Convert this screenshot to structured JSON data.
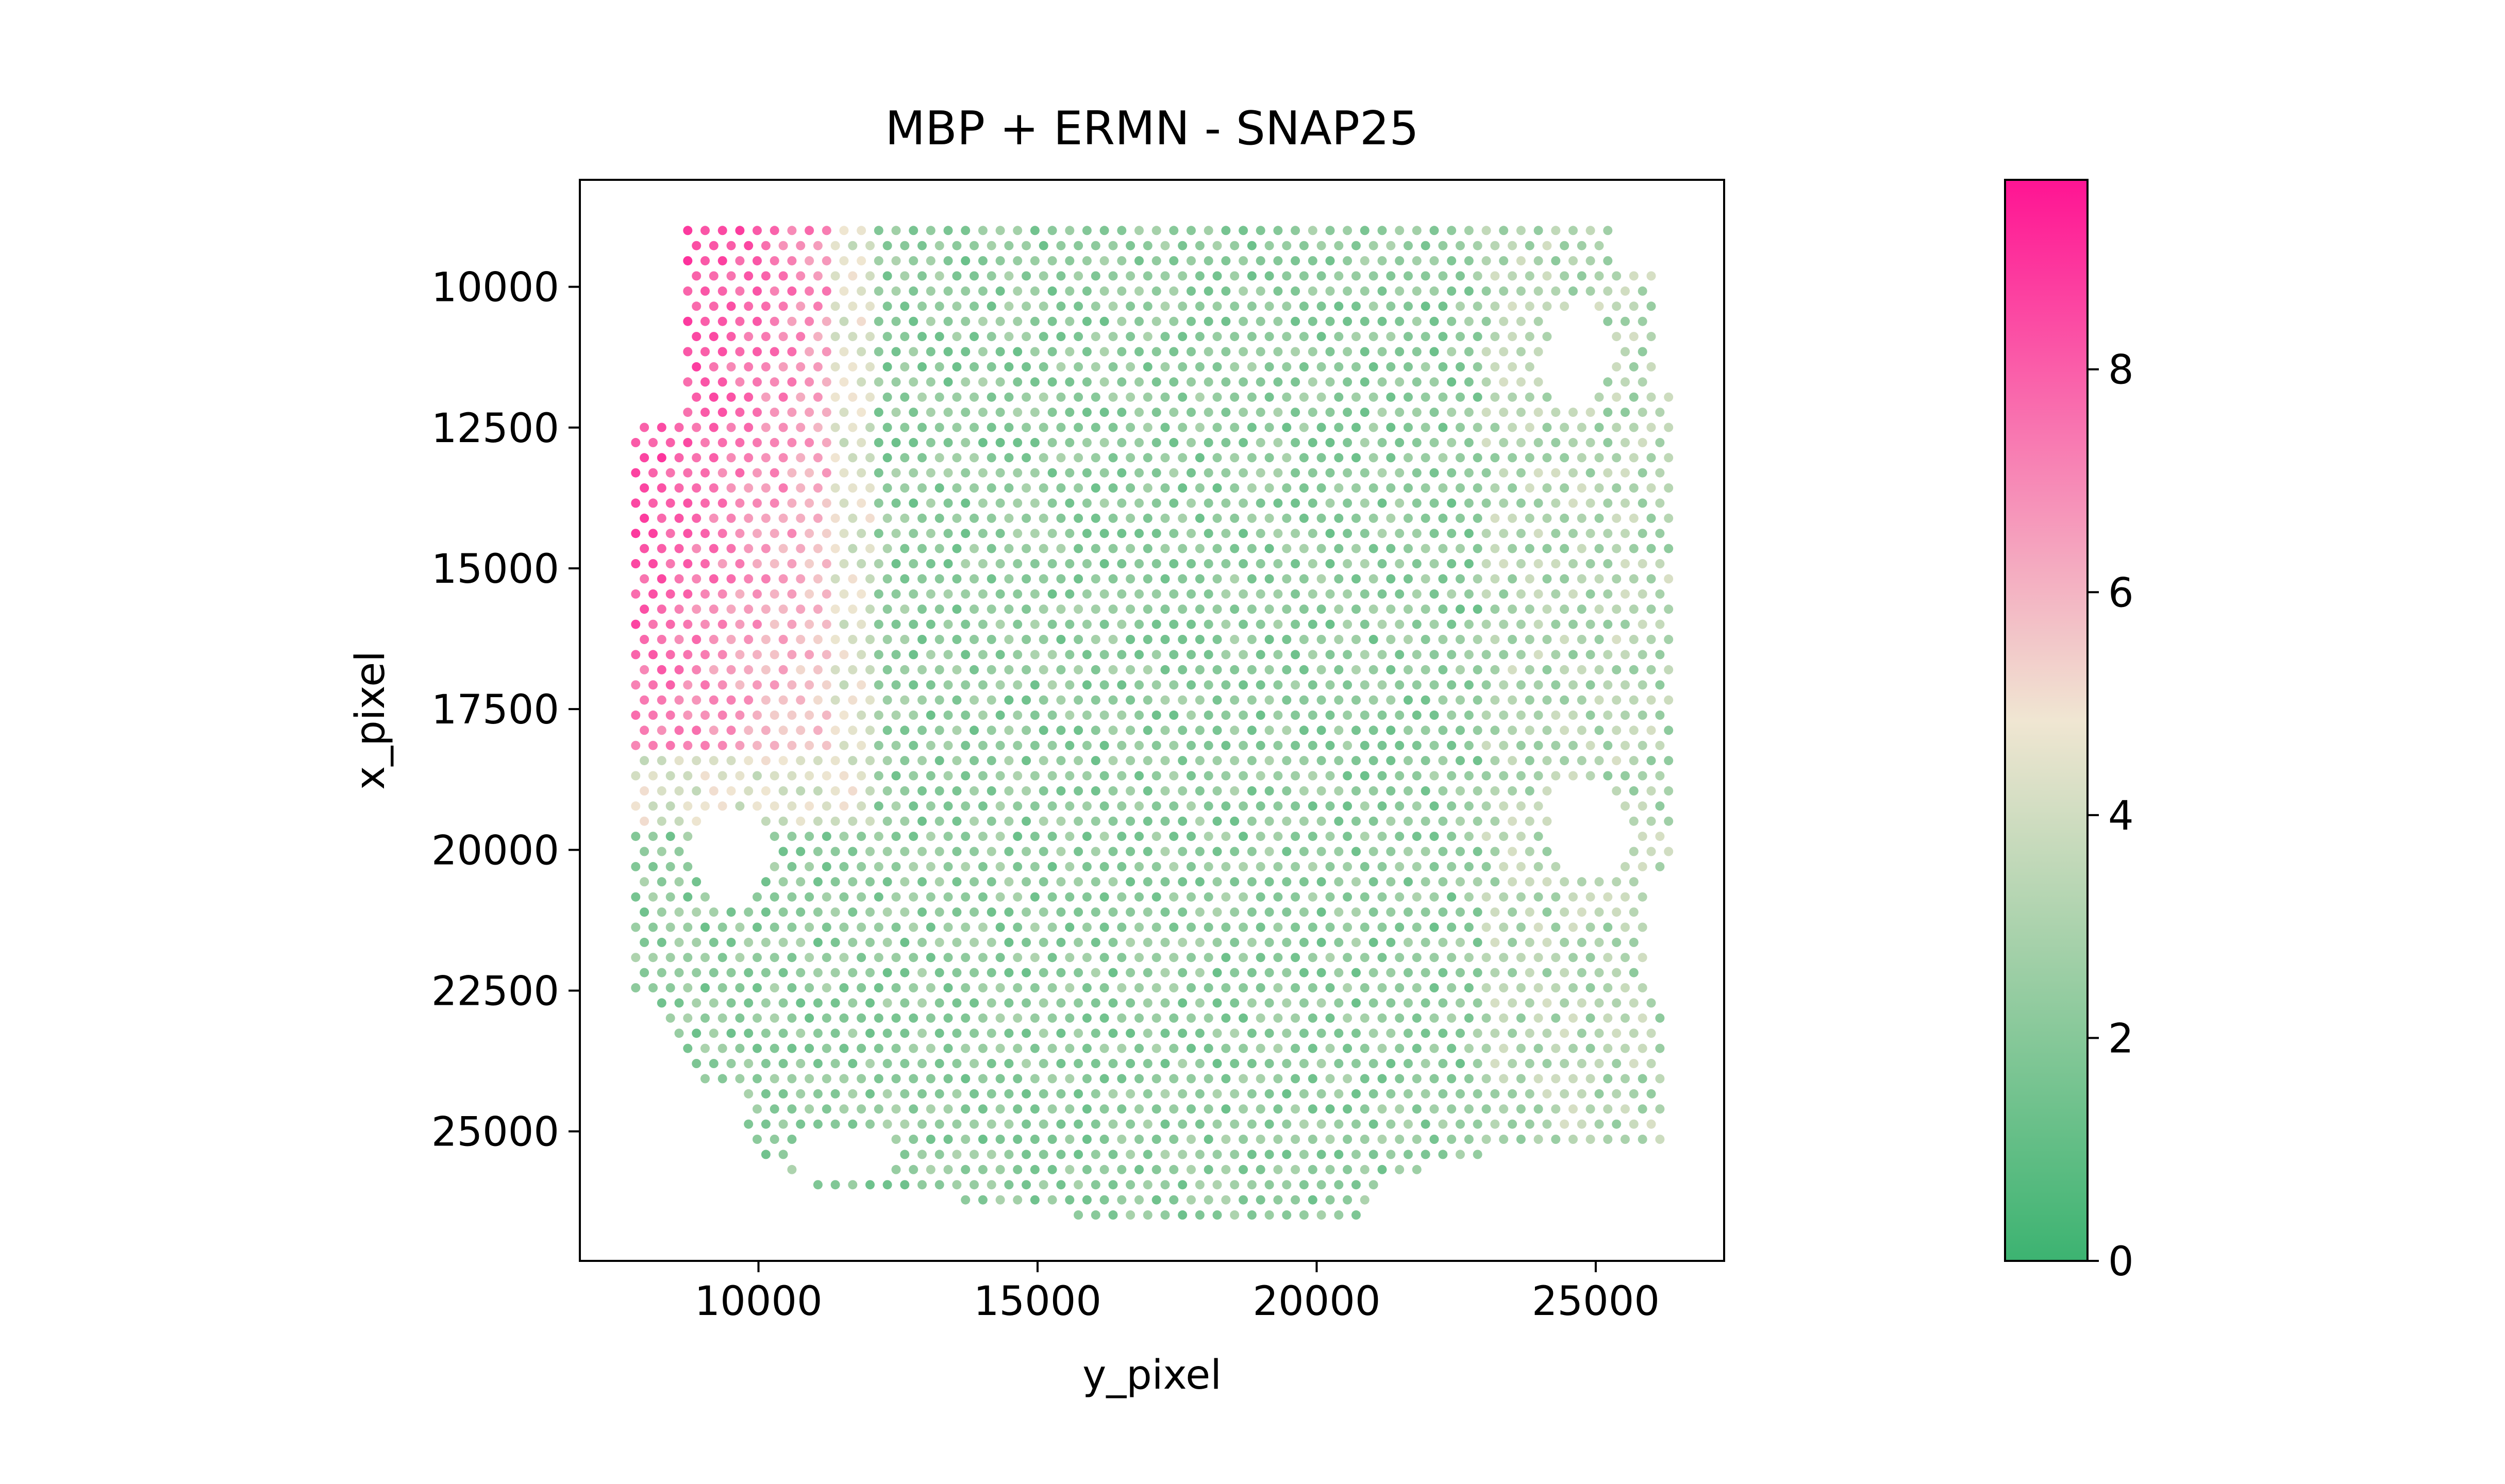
{
  "chart_data": {
    "type": "scatter",
    "title": "MBP + ERMN - SNAP25",
    "xlabel": "y_pixel",
    "ylabel": "x_pixel",
    "xlim": [
      6800,
      27300
    ],
    "ylim": [
      27300,
      8100
    ],
    "y_inverted": true,
    "x_ticks": [
      10000,
      15000,
      20000,
      25000
    ],
    "y_ticks": [
      10000,
      12500,
      15000,
      17500,
      20000,
      22500,
      25000
    ],
    "x_tick_labels": [
      "10000",
      "15000",
      "20000",
      "25000"
    ],
    "y_tick_labels": [
      "10000",
      "12500",
      "15000",
      "17500",
      "20000",
      "22500",
      "25000"
    ],
    "grid": false,
    "colorbar": {
      "min": 0,
      "max": 9.7,
      "ticks": [
        0,
        2,
        4,
        6,
        8
      ],
      "tick_labels": [
        "0",
        "2",
        "4",
        "6",
        "8"
      ],
      "colors": [
        "#3cb371",
        "#f0e6d2",
        "#ff1493"
      ]
    },
    "point_color": "#3cb371",
    "spots_description": "Hexagonal grid of Visium spots (~15000 points) spanning y_pixel 7800-26400 and x_pixel 9000-26600. High values (6-9.5, pink) in the upper-left region (y_pixel 7800-11300, x_pixel 9000-18000); low values (1-4, green) elsewhere; holes near (24600, 11200), (24800, 19700), (9600, 20200), (12000, 25500).",
    "spot_grid": {
      "x_start": 7800,
      "x_end": 26400,
      "x_step": 311,
      "y_start": 9000,
      "y_end": 26600,
      "y_step": 269
    }
  }
}
